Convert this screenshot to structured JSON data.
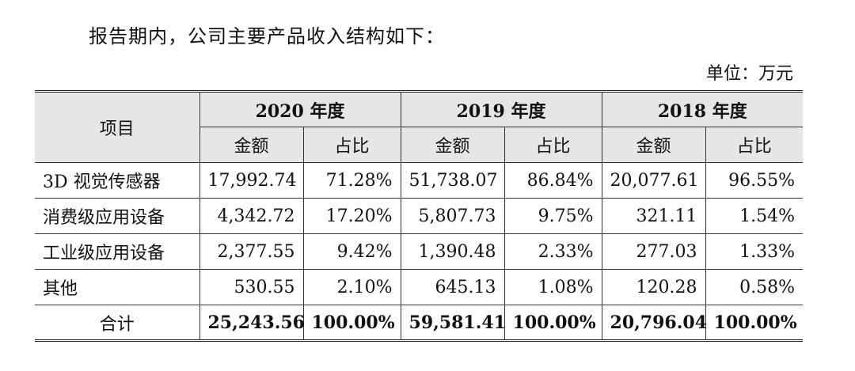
{
  "intro": "报告期内，公司主要产品收入结构如下：",
  "unit": "单位：万元",
  "table": {
    "item_header": "项目",
    "years": [
      "2020 年度",
      "2019 年度",
      "2018 年度"
    ],
    "amount_label": "金额",
    "ratio_label": "占比",
    "rows": [
      {
        "name": "3D 视觉传感器",
        "values": [
          "17,992.74",
          "71.28%",
          "51,738.07",
          "86.84%",
          "20,077.61",
          "96.55%"
        ]
      },
      {
        "name": "消费级应用设备",
        "values": [
          "4,342.72",
          "17.20%",
          "5,807.73",
          "9.75%",
          "321.11",
          "1.54%"
        ]
      },
      {
        "name": "工业级应用设备",
        "values": [
          "2,377.55",
          "9.42%",
          "1,390.48",
          "2.33%",
          "277.03",
          "1.33%"
        ]
      },
      {
        "name": "其他",
        "values": [
          "530.55",
          "2.10%",
          "645.13",
          "1.08%",
          "120.28",
          "0.58%"
        ]
      }
    ],
    "total": {
      "name": "合计",
      "values": [
        "25,243.56",
        "100.00%",
        "59,581.41",
        "100.00%",
        "20,796.04",
        "100.00%"
      ]
    }
  }
}
